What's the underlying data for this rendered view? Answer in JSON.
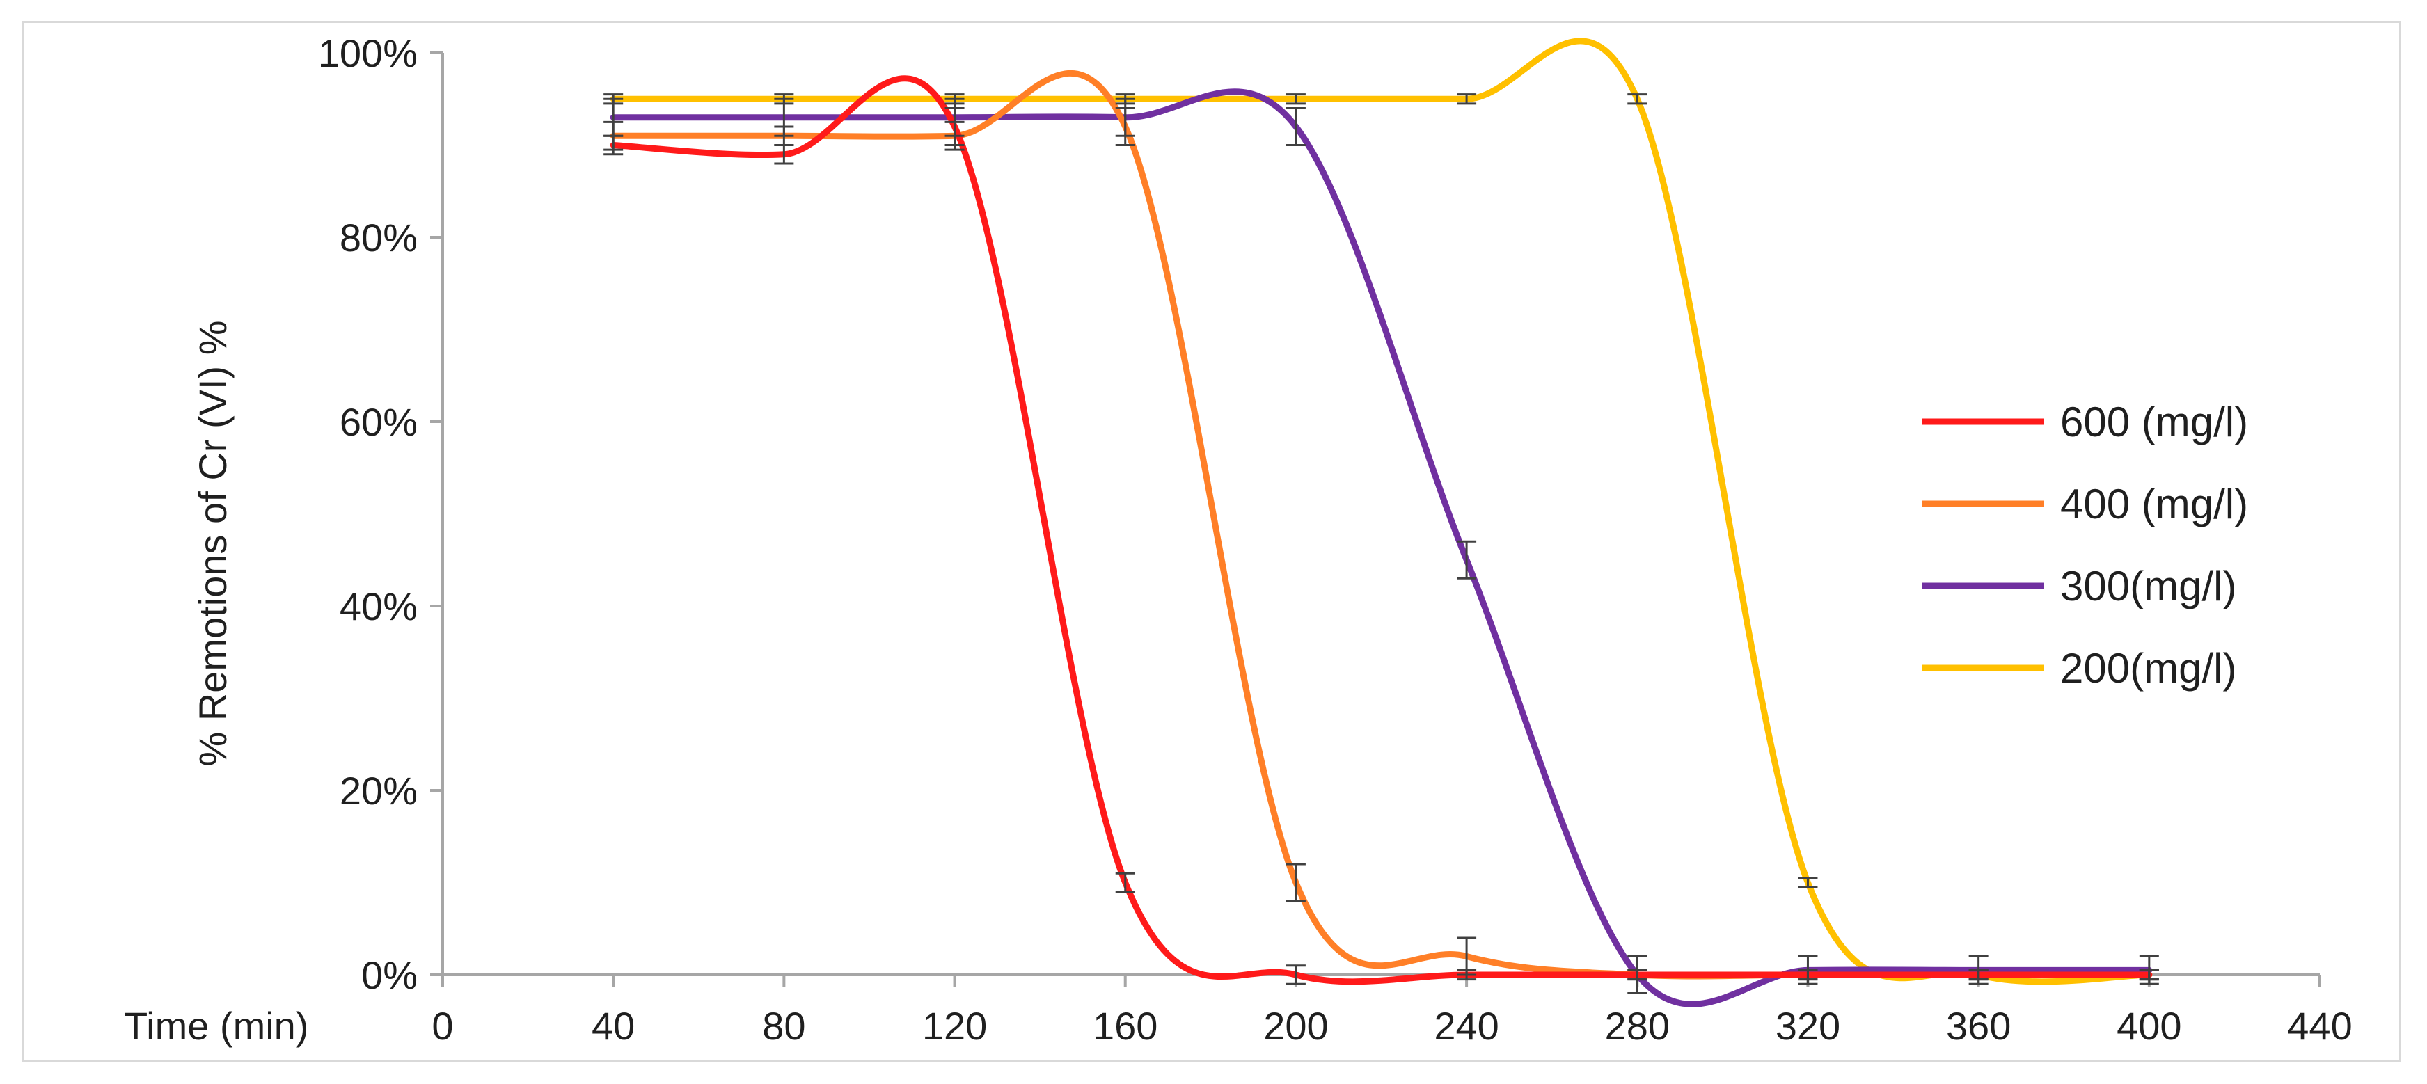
{
  "chart_data": {
    "type": "line",
    "title": "",
    "xlabel": "Time (min)",
    "ylabel": "% Remotions of  Cr (VI) %",
    "xlim": [
      0,
      440
    ],
    "ylim": [
      0,
      100
    ],
    "x_ticks": [
      "0",
      "40",
      "80",
      "120",
      "160",
      "200",
      "240",
      "280",
      "320",
      "360",
      "400",
      "440"
    ],
    "y_ticks": [
      "0%",
      "20%",
      "40%",
      "60%",
      "80%",
      "100%"
    ],
    "x_tick_values": [
      0,
      40,
      80,
      120,
      160,
      200,
      240,
      280,
      320,
      360,
      400,
      440
    ],
    "y_tick_values": [
      0,
      20,
      40,
      60,
      80,
      100
    ],
    "grid": false,
    "legend_position": "right",
    "series": [
      {
        "name": "600 (mg/l)",
        "color": "#ff1a1a",
        "x": [
          40,
          80,
          120,
          160,
          200,
          240,
          280,
          320,
          360,
          400
        ],
        "y": [
          90,
          89,
          92,
          10,
          0,
          0,
          0,
          0,
          0,
          0
        ],
        "error": [
          1.0,
          1.0,
          2.0,
          1.0,
          1.0,
          0.5,
          0.5,
          0.5,
          0.5,
          0.5
        ]
      },
      {
        "name": "400 (mg/l)",
        "color": "#ff7f27",
        "x": [
          40,
          80,
          120,
          160,
          200,
          240,
          280,
          320,
          360,
          400
        ],
        "y": [
          91,
          91,
          91,
          92,
          10,
          2,
          0,
          0,
          0,
          0
        ],
        "error": [
          1.5,
          1.0,
          1.5,
          2.0,
          2.0,
          2.0,
          0.5,
          0.5,
          0.5,
          0.5
        ]
      },
      {
        "name": "300(mg/l)",
        "color": "#7030a0",
        "x": [
          40,
          80,
          120,
          160,
          200,
          240,
          280,
          320,
          360,
          400
        ],
        "y": [
          93,
          93,
          93,
          93,
          92,
          45,
          0,
          0.5,
          0.5,
          0.5
        ],
        "error": [
          2.0,
          2.0,
          2.0,
          2.0,
          2.0,
          2.0,
          2.0,
          1.5,
          1.5,
          1.5
        ]
      },
      {
        "name": "200(mg/l)",
        "color": "#ffc000",
        "x": [
          40,
          80,
          120,
          160,
          200,
          240,
          280,
          320,
          360,
          400
        ],
        "y": [
          95,
          95,
          95,
          95,
          95,
          95,
          95,
          10,
          0,
          0
        ],
        "error": [
          0.5,
          0.5,
          0.5,
          0.5,
          0.5,
          0.5,
          0.5,
          0.5,
          0.5,
          0.5
        ]
      }
    ]
  }
}
